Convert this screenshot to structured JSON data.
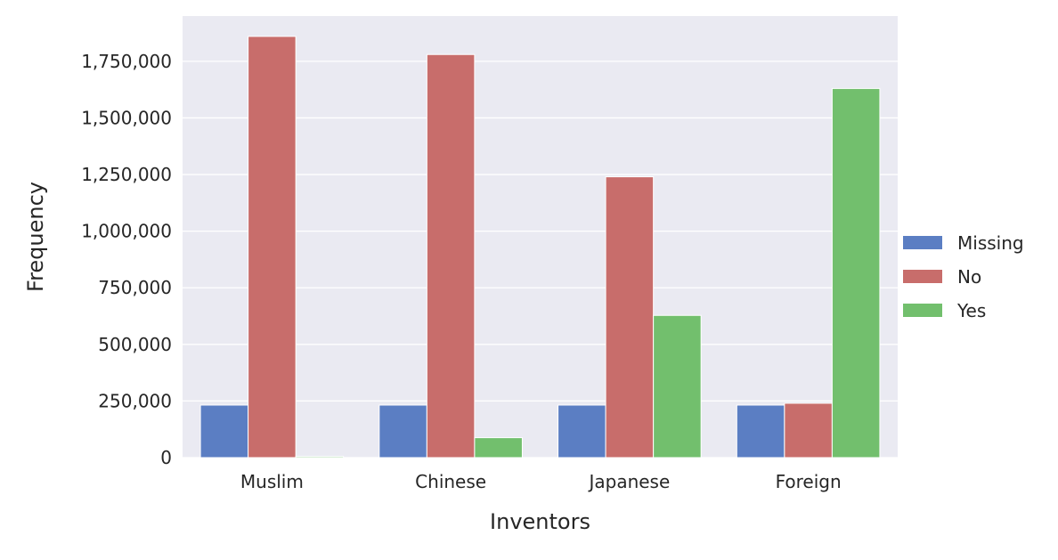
{
  "chart_data": {
    "type": "bar",
    "title": "",
    "xlabel": "Inventors",
    "ylabel": "Frequency",
    "categories": [
      "Muslim",
      "Chinese",
      "Japanese",
      "Foreign"
    ],
    "series": [
      {
        "name": "Missing",
        "color": "#5b7ec3",
        "values": [
          232000,
          232000,
          232000,
          232000
        ]
      },
      {
        "name": "No",
        "color": "#c86d6b",
        "values": [
          1860000,
          1780000,
          1240000,
          240000
        ]
      },
      {
        "name": "Yes",
        "color": "#72bf6d",
        "values": [
          5000,
          88000,
          628000,
          1630000
        ]
      }
    ],
    "ylim": [
      0,
      1950000
    ],
    "yticks": [
      0,
      250000,
      500000,
      750000,
      1000000,
      1250000,
      1500000,
      1750000
    ],
    "ytick_labels": [
      "0",
      "250,000",
      "500,000",
      "750,000",
      "1,000,000",
      "1,250,000",
      "1,500,000",
      "1,750,000"
    ],
    "grid": true,
    "legend_position": "right",
    "background": "#eaeaf2"
  }
}
